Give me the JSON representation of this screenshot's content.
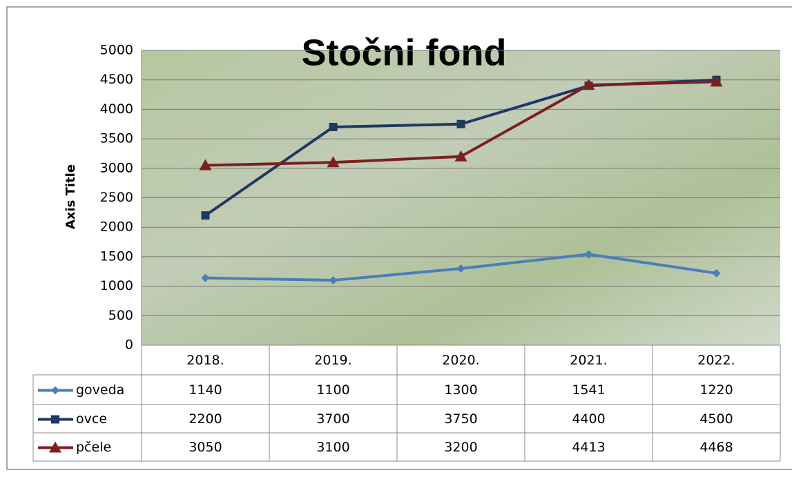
{
  "chart_data": {
    "type": "line",
    "title": "Stočni fond",
    "y_axis_label": "Axis Title",
    "categories": [
      "2018.",
      "2019.",
      "2020.",
      "2021.",
      "2022."
    ],
    "series": [
      {
        "name": "goveda",
        "color": "#4a7ebb",
        "marker": "diamond",
        "values": [
          1140,
          1100,
          1300,
          1541,
          1220
        ]
      },
      {
        "name": "ovce",
        "color": "#1f3864",
        "marker": "square",
        "values": [
          2200,
          3700,
          3750,
          4400,
          4500
        ]
      },
      {
        "name": "pčele",
        "color": "#7b1f1f",
        "marker": "triangle",
        "values": [
          3050,
          3100,
          3200,
          4413,
          4468
        ]
      }
    ],
    "ylim": [
      0,
      5000
    ],
    "yticks": [
      0,
      500,
      1000,
      1500,
      2000,
      2500,
      3000,
      3500,
      4000,
      4500,
      5000
    ],
    "grid": true,
    "data_table": true
  }
}
